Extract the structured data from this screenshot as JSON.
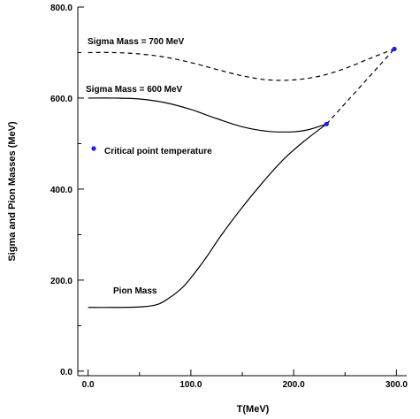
{
  "chart_data": {
    "type": "line",
    "xlabel": "T(MeV)",
    "ylabel": "Sigma and Pion Masses (MeV)",
    "xlim": [
      -10,
      310
    ],
    "ylim": [
      -10,
      800
    ],
    "grid": false,
    "x_ticks": [
      {
        "value": 0,
        "label": "0.0"
      },
      {
        "value": 100,
        "label": "100.0"
      },
      {
        "value": 200,
        "label": "200.0"
      },
      {
        "value": 300,
        "label": "300.0"
      }
    ],
    "x_minor_ticks": [
      50,
      150,
      250
    ],
    "y_ticks": [
      {
        "value": 0,
        "label": "0.0"
      },
      {
        "value": 200,
        "label": "200.0"
      },
      {
        "value": 400,
        "label": "400.0"
      },
      {
        "value": 600,
        "label": "600.0"
      },
      {
        "value": 800,
        "label": "800.0"
      }
    ],
    "y_minor_ticks": [
      100,
      300,
      500,
      700
    ],
    "series": [
      {
        "name": "Sigma Mass = 700 MeV",
        "style": "dashed",
        "color": "#000000",
        "x": [
          0,
          25,
          50,
          75,
          100,
          125,
          150,
          175,
          200,
          225,
          250,
          275,
          298
        ],
        "y": [
          700,
          700,
          697,
          690,
          678,
          663,
          649,
          640,
          640,
          648,
          665,
          688,
          708
        ]
      },
      {
        "name": "Sigma Mass = 600 MeV",
        "style": "solid",
        "color": "#000000",
        "x": [
          0,
          25,
          50,
          75,
          100,
          125,
          150,
          175,
          200,
          215,
          232
        ],
        "y": [
          600,
          600,
          598,
          590,
          575,
          555,
          537,
          527,
          526,
          531,
          543
        ]
      },
      {
        "name": "Sigma Mass = 600 MeV (extension)",
        "style": "dashed",
        "color": "#000000",
        "x": [
          232,
          298
        ],
        "y": [
          543,
          708
        ]
      },
      {
        "name": "Pion Mass",
        "style": "solid",
        "color": "#000000",
        "x": [
          0,
          25,
          50,
          65,
          75,
          90,
          100,
          115,
          130,
          150,
          170,
          190,
          210,
          232
        ],
        "y": [
          140,
          140,
          141,
          145,
          155,
          180,
          205,
          250,
          300,
          360,
          415,
          465,
          505,
          543
        ]
      },
      {
        "name": "Critical point temperature",
        "style": "markers",
        "color": "#1a1aff",
        "x": [
          232,
          298
        ],
        "y": [
          543,
          708
        ]
      }
    ],
    "annotations": [
      {
        "text": "Sigma Mass = 700 MeV"
      },
      {
        "text": "Sigma Mass = 600 MeV"
      },
      {
        "text": "Critical point temperature"
      },
      {
        "text": "Pion Mass"
      }
    ],
    "legend_marker_color": "#1a1aff"
  }
}
